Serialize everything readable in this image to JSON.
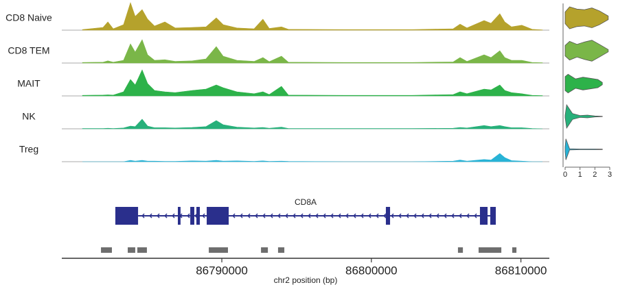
{
  "chart_data": {
    "type": "coverage",
    "xlabel": "chr2 position (bp)",
    "xlim": [
      86779300,
      86811900
    ],
    "xticks": [
      86790000,
      86800000,
      86810000
    ],
    "x": [
      86780680,
      86782060,
      86782380,
      86782740,
      86783430,
      86783890,
      86784210,
      86784670,
      86785040,
      86785500,
      86786190,
      86786880,
      86788020,
      86788940,
      86789630,
      86790090,
      86791010,
      86792160,
      86792750,
      86793170,
      86793990,
      86794450,
      86798130,
      86802720,
      86805470,
      86805930,
      86806390,
      86807540,
      86808000,
      86808590,
      86808920,
      86809370,
      86810060,
      86810750,
      86811440
    ],
    "series": [
      {
        "name": "CD8 Naive",
        "color": "#b5a22c",
        "values": [
          2,
          10,
          30,
          5,
          20,
          100,
          50,
          75,
          40,
          15,
          30,
          8,
          10,
          12,
          45,
          20,
          8,
          5,
          40,
          6,
          12,
          3,
          2,
          2,
          5,
          22,
          8,
          35,
          25,
          60,
          30,
          12,
          18,
          3,
          1
        ],
        "violin_x": [
          0,
          0.3,
          0.8,
          1.3,
          1.8,
          2.3,
          2.9
        ],
        "violin_density": [
          0.5,
          0.95,
          0.75,
          0.7,
          0.85,
          0.6,
          0.15
        ]
      },
      {
        "name": "CD8 TEM",
        "color": "#7ab648",
        "values": [
          2,
          3,
          8,
          3,
          10,
          70,
          40,
          85,
          30,
          10,
          12,
          6,
          8,
          15,
          60,
          25,
          10,
          6,
          20,
          5,
          25,
          3,
          2,
          2,
          4,
          20,
          6,
          30,
          20,
          45,
          20,
          10,
          10,
          2,
          1
        ],
        "violin_x": [
          0,
          0.3,
          0.8,
          1.3,
          1.8,
          2.3,
          2.9
        ],
        "violin_density": [
          0.45,
          0.8,
          0.55,
          0.75,
          0.9,
          0.55,
          0.1
        ]
      },
      {
        "name": "MAIT",
        "color": "#2db24a",
        "values": [
          2,
          3,
          4,
          3,
          15,
          60,
          40,
          95,
          45,
          20,
          15,
          12,
          20,
          25,
          40,
          30,
          15,
          8,
          15,
          5,
          35,
          3,
          2,
          2,
          5,
          15,
          8,
          25,
          22,
          40,
          20,
          12,
          8,
          2,
          1
        ],
        "violin_x": [
          0,
          0.2,
          0.7,
          1.2,
          1.7,
          2.2,
          2.5
        ],
        "violin_density": [
          0.6,
          0.8,
          0.4,
          0.55,
          0.45,
          0.35,
          0.1
        ]
      },
      {
        "name": "NK",
        "color": "#27b07a",
        "values": [
          1,
          1,
          2,
          1,
          3,
          10,
          8,
          35,
          10,
          4,
          4,
          3,
          5,
          8,
          30,
          15,
          6,
          3,
          5,
          2,
          6,
          1,
          1,
          1,
          2,
          5,
          3,
          12,
          8,
          12,
          8,
          4,
          4,
          1,
          0
        ],
        "violin_x": [
          0,
          0.1,
          0.5,
          1.0,
          1.5,
          2.0,
          2.5
        ],
        "violin_density": [
          0.1,
          1.0,
          0.25,
          0.08,
          0.12,
          0.04,
          0.02
        ]
      },
      {
        "name": "Treg",
        "color": "#28b3d6",
        "values": [
          0,
          0,
          0,
          0,
          0,
          5,
          2,
          5,
          2,
          2,
          1,
          1,
          3,
          2,
          5,
          2,
          3,
          1,
          3,
          1,
          2,
          1,
          0,
          0,
          2,
          6,
          2,
          8,
          6,
          30,
          15,
          4,
          2,
          0,
          0
        ],
        "violin_x": [
          0,
          0.05,
          0.3,
          1,
          2,
          2.5
        ],
        "violin_density": [
          0.2,
          0.9,
          0.05,
          0.03,
          0.03,
          0.02
        ]
      }
    ],
    "violin_xlim": [
      0,
      3
    ],
    "violin_xticks": [
      0,
      1,
      2,
      3
    ],
    "gene": {
      "name": "CD8A",
      "color": "#2a2f8c",
      "strand": "-",
      "exons": [
        [
          86782880,
          86784400
        ],
        [
          86787060,
          86787240
        ],
        [
          86787890,
          86788160
        ],
        [
          86788300,
          86788530
        ],
        [
          86788990,
          86790460
        ],
        [
          86800970,
          86801250
        ],
        [
          86807260,
          86807770
        ],
        [
          86807950,
          86808320
        ]
      ]
    },
    "peaks_color": "#6e6e6e",
    "peaks": [
      [
        86781920,
        86782650
      ],
      [
        86783710,
        86784210
      ],
      [
        86784350,
        86784990
      ],
      [
        86789130,
        86790410
      ],
      [
        86792620,
        86793080
      ],
      [
        86793760,
        86794180
      ],
      [
        86805790,
        86806120
      ],
      [
        86807170,
        86808690
      ],
      [
        86809420,
        86809700
      ]
    ]
  }
}
